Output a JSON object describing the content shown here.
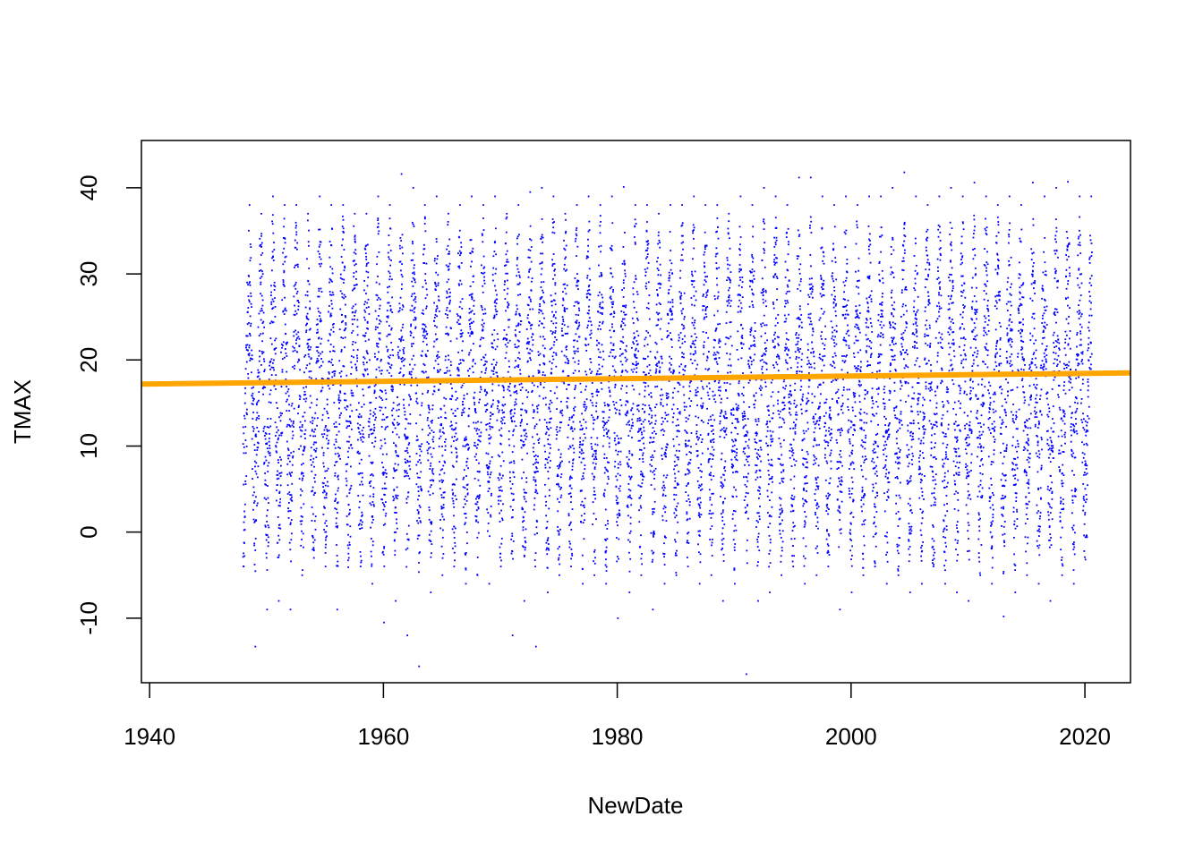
{
  "chart_data": {
    "type": "scatter",
    "title": "",
    "xlabel": "NewDate",
    "ylabel": "TMAX",
    "xlim": [
      1939.3,
      2023.9
    ],
    "ylim": [
      -17.5,
      45.5
    ],
    "x_ticks": [
      1940,
      1960,
      1980,
      2000,
      2020
    ],
    "x_tick_labels": [
      "1940",
      "1960",
      "1980",
      "2000",
      "2020"
    ],
    "y_ticks": [
      -10,
      0,
      10,
      20,
      30,
      40
    ],
    "y_tick_labels": [
      "-10",
      "0",
      "10",
      "20",
      "30",
      "40"
    ],
    "grid": false,
    "legend": "none",
    "point_color": "#0000ff",
    "series": [
      {
        "type": "scatter",
        "x_range": [
          1948.0,
          2020.6
        ],
        "sampling": "daily, one vertical band per year",
        "summer_max_by_year": [
          38,
          37,
          39,
          38,
          38,
          37,
          39,
          38,
          38,
          37,
          37,
          39,
          38,
          41.6,
          40,
          38,
          39,
          37,
          38,
          39,
          38,
          39,
          37,
          38,
          39.5,
          40,
          39,
          37,
          38,
          39,
          38,
          39,
          40.1,
          38,
          38,
          37,
          38,
          38,
          39,
          38,
          38,
          37,
          39,
          38,
          40,
          39,
          38,
          41.2,
          41.2,
          39,
          38,
          39,
          38,
          39,
          39,
          40,
          41.8,
          39,
          38,
          39,
          40,
          39,
          40.6,
          39,
          38,
          39,
          38,
          40.6,
          39,
          40,
          40.7,
          39,
          39
        ],
        "winter_min_by_year": [
          -4,
          -13.3,
          -9,
          -8,
          -9,
          -5,
          -3,
          -4,
          -9,
          -3,
          -4,
          -6,
          -10.5,
          -8,
          -12,
          -15.6,
          -7,
          -5,
          -4,
          -6,
          -5,
          -6,
          -4,
          -12,
          -8,
          -13.3,
          -7,
          -5,
          -4,
          -6,
          -5,
          -6,
          -10,
          -7,
          -5,
          -9,
          -6,
          -5,
          -4,
          -6,
          -5,
          -8,
          -6,
          -16.5,
          -8,
          -7,
          -5,
          -4,
          -6,
          -5,
          -4,
          -9,
          -7,
          -5,
          -4,
          -6,
          -5,
          -7,
          -6,
          -4,
          -6,
          -7,
          -8,
          -5,
          -6,
          -9.8,
          -7,
          -5,
          -6,
          -8,
          -5,
          -6,
          -3.2
        ]
      },
      {
        "type": "line",
        "color": "#ffa500",
        "x": [
          1939.3,
          2023.9
        ],
        "y": [
          17.2,
          18.5
        ]
      }
    ]
  }
}
